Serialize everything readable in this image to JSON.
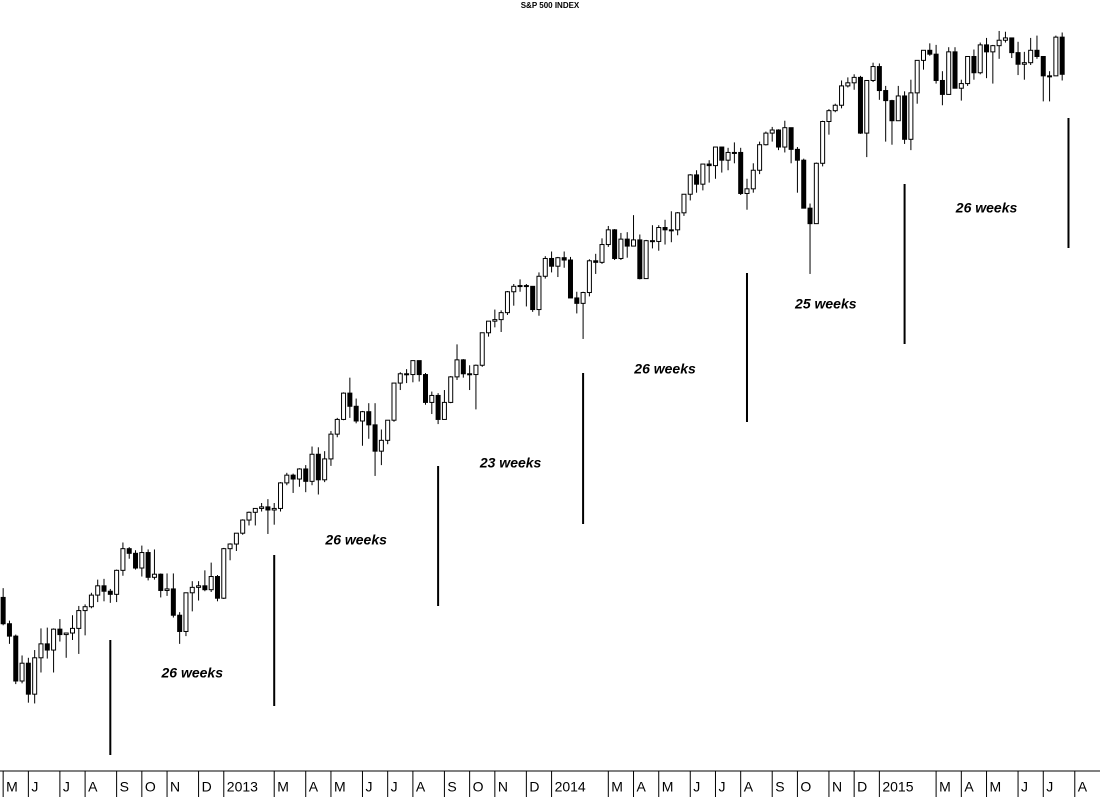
{
  "chart_data": {
    "type": "candlestick",
    "title": "S&P 500 INDEX",
    "x": [
      0,
      1,
      2,
      3,
      4,
      5,
      6,
      7,
      8,
      9,
      10,
      11,
      12,
      13,
      14,
      15,
      16,
      17,
      18,
      19,
      20,
      21,
      22,
      23,
      24,
      25,
      26,
      27,
      28,
      29,
      30,
      31,
      32,
      33,
      34,
      35,
      36,
      37,
      38,
      39,
      40,
      41,
      42,
      43,
      44,
      45,
      46,
      47,
      48,
      49,
      50,
      51,
      52,
      53,
      54,
      55,
      56,
      57,
      58,
      59,
      60,
      61,
      62,
      63,
      64,
      65,
      66,
      67,
      68,
      69,
      70,
      71,
      72,
      73,
      74,
      75,
      76,
      77,
      78,
      79,
      80,
      81,
      82,
      83,
      84,
      85,
      86,
      87,
      88,
      89,
      90,
      91,
      92,
      93,
      94,
      95,
      96,
      97,
      98,
      99,
      100,
      101,
      102,
      103,
      104,
      105,
      106,
      107,
      108,
      109,
      110,
      111,
      112,
      113,
      114,
      115,
      116,
      117,
      118,
      119,
      120,
      121,
      122,
      123,
      124,
      125,
      126,
      127,
      128,
      129,
      130,
      131,
      132,
      133,
      134,
      135,
      136,
      137,
      138,
      139,
      140,
      141,
      142,
      143,
      144,
      145,
      146,
      147,
      148,
      149,
      150,
      151,
      152,
      153,
      154,
      155,
      156,
      157,
      158,
      159,
      160,
      161,
      162,
      163,
      164,
      165,
      166,
      167,
      168
    ],
    "open": [
      1403,
      1369,
      1353,
      1295,
      1318,
      1278,
      1325,
      1343,
      1335,
      1362,
      1355,
      1357,
      1363,
      1386,
      1391,
      1406,
      1418,
      1411,
      1407,
      1438,
      1466,
      1460,
      1441,
      1461,
      1429,
      1433,
      1412,
      1414,
      1380,
      1359,
      1409,
      1416,
      1418,
      1413,
      1430,
      1402,
      1466,
      1472,
      1486,
      1503,
      1513,
      1518,
      1520,
      1516,
      1518,
      1551,
      1561,
      1556,
      1569,
      1553,
      1588,
      1555,
      1582,
      1614,
      1633,
      1667,
      1650,
      1631,
      1643,
      1626,
      1592,
      1606,
      1632,
      1680,
      1692,
      1691,
      1709,
      1691,
      1655,
      1664,
      1633,
      1655,
      1688,
      1710,
      1692,
      1691,
      1703,
      1745,
      1760,
      1762,
      1771,
      1798,
      1805,
      1806,
      1805,
      1775,
      1818,
      1841,
      1831,
      1842,
      1839,
      1790,
      1783,
      1797,
      1838,
      1836,
      1859,
      1878,
      1841,
      1866,
      1857,
      1865,
      1815,
      1864,
      1863,
      1881,
      1878,
      1878,
      1900,
      1924,
      1949,
      1937,
      1963,
      1961,
      1985,
      1968,
      1978,
      1978,
      1925,
      1931,
      1955,
      1988,
      2003,
      2007,
      1985,
      2010,
      1982,
      1968,
      1906,
      1886,
      1964,
      2018,
      2032,
      2039,
      2064,
      2068,
      2075,
      2003,
      2071,
      2089,
      2058,
      2045,
      2019,
      2051,
      1995,
      2055,
      2097,
      2110,
      2105,
      2071,
      2053,
      2108,
      2061,
      2067,
      2102,
      2081,
      2117,
      2108,
      2116,
      2123,
      2126,
      2107,
      2092,
      2094,
      2110,
      2102,
      2077,
      2077,
      2127
    ],
    "high": [
      1415,
      1373,
      1355,
      1328,
      1325,
      1335,
      1363,
      1364,
      1363,
      1375,
      1357,
      1380,
      1392,
      1394,
      1409,
      1426,
      1427,
      1414,
      1439,
      1474,
      1468,
      1464,
      1470,
      1465,
      1465,
      1434,
      1434,
      1434,
      1384,
      1409,
      1424,
      1424,
      1438,
      1448,
      1432,
      1467,
      1473,
      1486,
      1504,
      1514,
      1518,
      1525,
      1530,
      1525,
      1552,
      1564,
      1563,
      1570,
      1574,
      1598,
      1597,
      1592,
      1618,
      1635,
      1668,
      1687,
      1660,
      1644,
      1654,
      1654,
      1620,
      1632,
      1680,
      1694,
      1698,
      1709,
      1709,
      1693,
      1669,
      1667,
      1671,
      1689,
      1730,
      1711,
      1703,
      1704,
      1745,
      1760,
      1775,
      1774,
      1799,
      1808,
      1814,
      1808,
      1805,
      1823,
      1844,
      1850,
      1843,
      1850,
      1843,
      1798,
      1798,
      1840,
      1847,
      1867,
      1883,
      1879,
      1874,
      1875,
      1897,
      1872,
      1865,
      1884,
      1884,
      1891,
      1902,
      1901,
      1924,
      1950,
      1955,
      1963,
      1968,
      1985,
      1985,
      1984,
      1991,
      1984,
      1944,
      1964,
      1992,
      2005,
      2011,
      2008,
      2019,
      2010,
      1985,
      1970,
      1912,
      1965,
      2019,
      2034,
      2041,
      2071,
      2075,
      2079,
      2077,
      2071,
      2094,
      2093,
      2064,
      2046,
      2064,
      2057,
      2072,
      2097,
      2110,
      2119,
      2117,
      2083,
      2114,
      2114,
      2072,
      2102,
      2111,
      2120,
      2126,
      2117,
      2135,
      2134,
      2126,
      2121,
      2108,
      2126,
      2129,
      2102,
      2083,
      2129,
      2133
    ],
    "low": [
      1367,
      1343,
      1291,
      1292,
      1267,
      1266,
      1306,
      1324,
      1306,
      1346,
      1325,
      1348,
      1330,
      1354,
      1389,
      1397,
      1398,
      1396,
      1397,
      1431,
      1453,
      1439,
      1430,
      1425,
      1426,
      1403,
      1405,
      1377,
      1343,
      1353,
      1385,
      1399,
      1411,
      1410,
      1398,
      1401,
      1451,
      1463,
      1484,
      1496,
      1496,
      1514,
      1485,
      1497,
      1514,
      1548,
      1538,
      1546,
      1539,
      1548,
      1536,
      1552,
      1573,
      1610,
      1632,
      1635,
      1628,
      1599,
      1608,
      1560,
      1574,
      1601,
      1630,
      1671,
      1680,
      1681,
      1682,
      1652,
      1640,
      1627,
      1633,
      1654,
      1684,
      1687,
      1671,
      1646,
      1701,
      1740,
      1752,
      1746,
      1768,
      1780,
      1798,
      1779,
      1772,
      1767,
      1815,
      1823,
      1817,
      1829,
      1790,
      1770,
      1737,
      1792,
      1821,
      1834,
      1856,
      1839,
      1839,
      1842,
      1857,
      1814,
      1815,
      1854,
      1851,
      1859,
      1862,
      1871,
      1896,
      1916,
      1926,
      1929,
      1939,
      1944,
      1952,
      1955,
      1964,
      1923,
      1904,
      1926,
      1950,
      1987,
      1992,
      1981,
      1978,
      1964,
      1926,
      1906,
      1821,
      1886,
      1960,
      2001,
      2030,
      2035,
      2062,
      2059,
      2002,
      1972,
      2069,
      2046,
      1992,
      1988,
      2019,
      1989,
      1981,
      2041,
      2085,
      2103,
      2067,
      2039,
      2053,
      2061,
      2045,
      2064,
      2072,
      2079,
      2074,
      2067,
      2099,
      2120,
      2100,
      2078,
      2072,
      2091,
      2099,
      2044,
      2044,
      2077,
      2071
    ],
    "close": [
      1369,
      1353,
      1295,
      1318,
      1278,
      1325,
      1343,
      1335,
      1362,
      1355,
      1357,
      1363,
      1386,
      1391,
      1406,
      1418,
      1411,
      1407,
      1438,
      1466,
      1460,
      1441,
      1461,
      1429,
      1433,
      1412,
      1414,
      1380,
      1359,
      1409,
      1416,
      1418,
      1413,
      1430,
      1402,
      1466,
      1472,
      1486,
      1503,
      1513,
      1518,
      1520,
      1516,
      1518,
      1551,
      1561,
      1556,
      1569,
      1553,
      1588,
      1555,
      1582,
      1614,
      1633,
      1667,
      1650,
      1631,
      1643,
      1626,
      1592,
      1606,
      1632,
      1680,
      1692,
      1691,
      1709,
      1691,
      1655,
      1664,
      1633,
      1655,
      1688,
      1710,
      1692,
      1691,
      1703,
      1745,
      1760,
      1762,
      1771,
      1798,
      1805,
      1806,
      1805,
      1775,
      1818,
      1841,
      1831,
      1842,
      1839,
      1790,
      1783,
      1797,
      1838,
      1836,
      1859,
      1878,
      1841,
      1866,
      1857,
      1865,
      1815,
      1864,
      1863,
      1881,
      1878,
      1878,
      1900,
      1924,
      1949,
      1937,
      1963,
      1961,
      1985,
      1968,
      1978,
      1978,
      1925,
      1931,
      1955,
      1988,
      2003,
      2007,
      1985,
      2010,
      1982,
      1968,
      1906,
      1886,
      1964,
      2018,
      2032,
      2039,
      2064,
      2068,
      2075,
      2003,
      2071,
      2089,
      2058,
      2045,
      2019,
      2051,
      1995,
      2055,
      2097,
      2110,
      2105,
      2071,
      2053,
      2108,
      2061,
      2067,
      2102,
      2081,
      2117,
      2108,
      2116,
      2123,
      2126,
      2107,
      2092,
      2094,
      2110,
      2102,
      2077,
      2077,
      2127,
      2079
    ],
    "up_color": "#ffffff",
    "down_color": "#000000",
    "xlim": [
      -0.5,
      174
    ],
    "ylim": [
      1180,
      2175
    ],
    "xticks": [
      {
        "value": 0,
        "label": "M"
      },
      {
        "value": 4,
        "label": "J"
      },
      {
        "value": 9,
        "label": "J"
      },
      {
        "value": 13,
        "label": "A"
      },
      {
        "value": 18,
        "label": "S"
      },
      {
        "value": 22,
        "label": "O"
      },
      {
        "value": 26,
        "label": "N"
      },
      {
        "value": 31,
        "label": "D"
      },
      {
        "value": 35,
        "label": "2013"
      },
      {
        "value": 43,
        "label": "M"
      },
      {
        "value": 48,
        "label": "A"
      },
      {
        "value": 52,
        "label": "M"
      },
      {
        "value": 57,
        "label": "J"
      },
      {
        "value": 61,
        "label": "J"
      },
      {
        "value": 65,
        "label": "A"
      },
      {
        "value": 70,
        "label": "S"
      },
      {
        "value": 74,
        "label": "O"
      },
      {
        "value": 78,
        "label": "N"
      },
      {
        "value": 83,
        "label": "D"
      },
      {
        "value": 87,
        "label": "2014"
      },
      {
        "value": 96,
        "label": "M"
      },
      {
        "value": 100,
        "label": "A"
      },
      {
        "value": 104,
        "label": "M"
      },
      {
        "value": 109,
        "label": "J"
      },
      {
        "value": 113,
        "label": "J"
      },
      {
        "value": 117,
        "label": "A"
      },
      {
        "value": 122,
        "label": "S"
      },
      {
        "value": 126,
        "label": "O"
      },
      {
        "value": 131,
        "label": "N"
      },
      {
        "value": 135,
        "label": "D"
      },
      {
        "value": 139,
        "label": "2015"
      },
      {
        "value": 148,
        "label": "M"
      },
      {
        "value": 152,
        "label": "A"
      },
      {
        "value": 156,
        "label": "M"
      },
      {
        "value": 161,
        "label": "J"
      },
      {
        "value": 165,
        "label": "J"
      },
      {
        "value": 170,
        "label": "A"
      }
    ],
    "cycle_lines": [
      17,
      43,
      69,
      92,
      118,
      143,
      169
    ],
    "cycle_labels": [
      "26 weeks",
      "26 weeks",
      "23 weeks",
      "26 weeks",
      "25 weeks",
      "26 weeks"
    ]
  }
}
